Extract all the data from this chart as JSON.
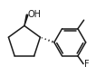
{
  "bg_color": "#ffffff",
  "line_color": "#1a1a1a",
  "line_width": 1.1,
  "font_size_label": 7.0
}
